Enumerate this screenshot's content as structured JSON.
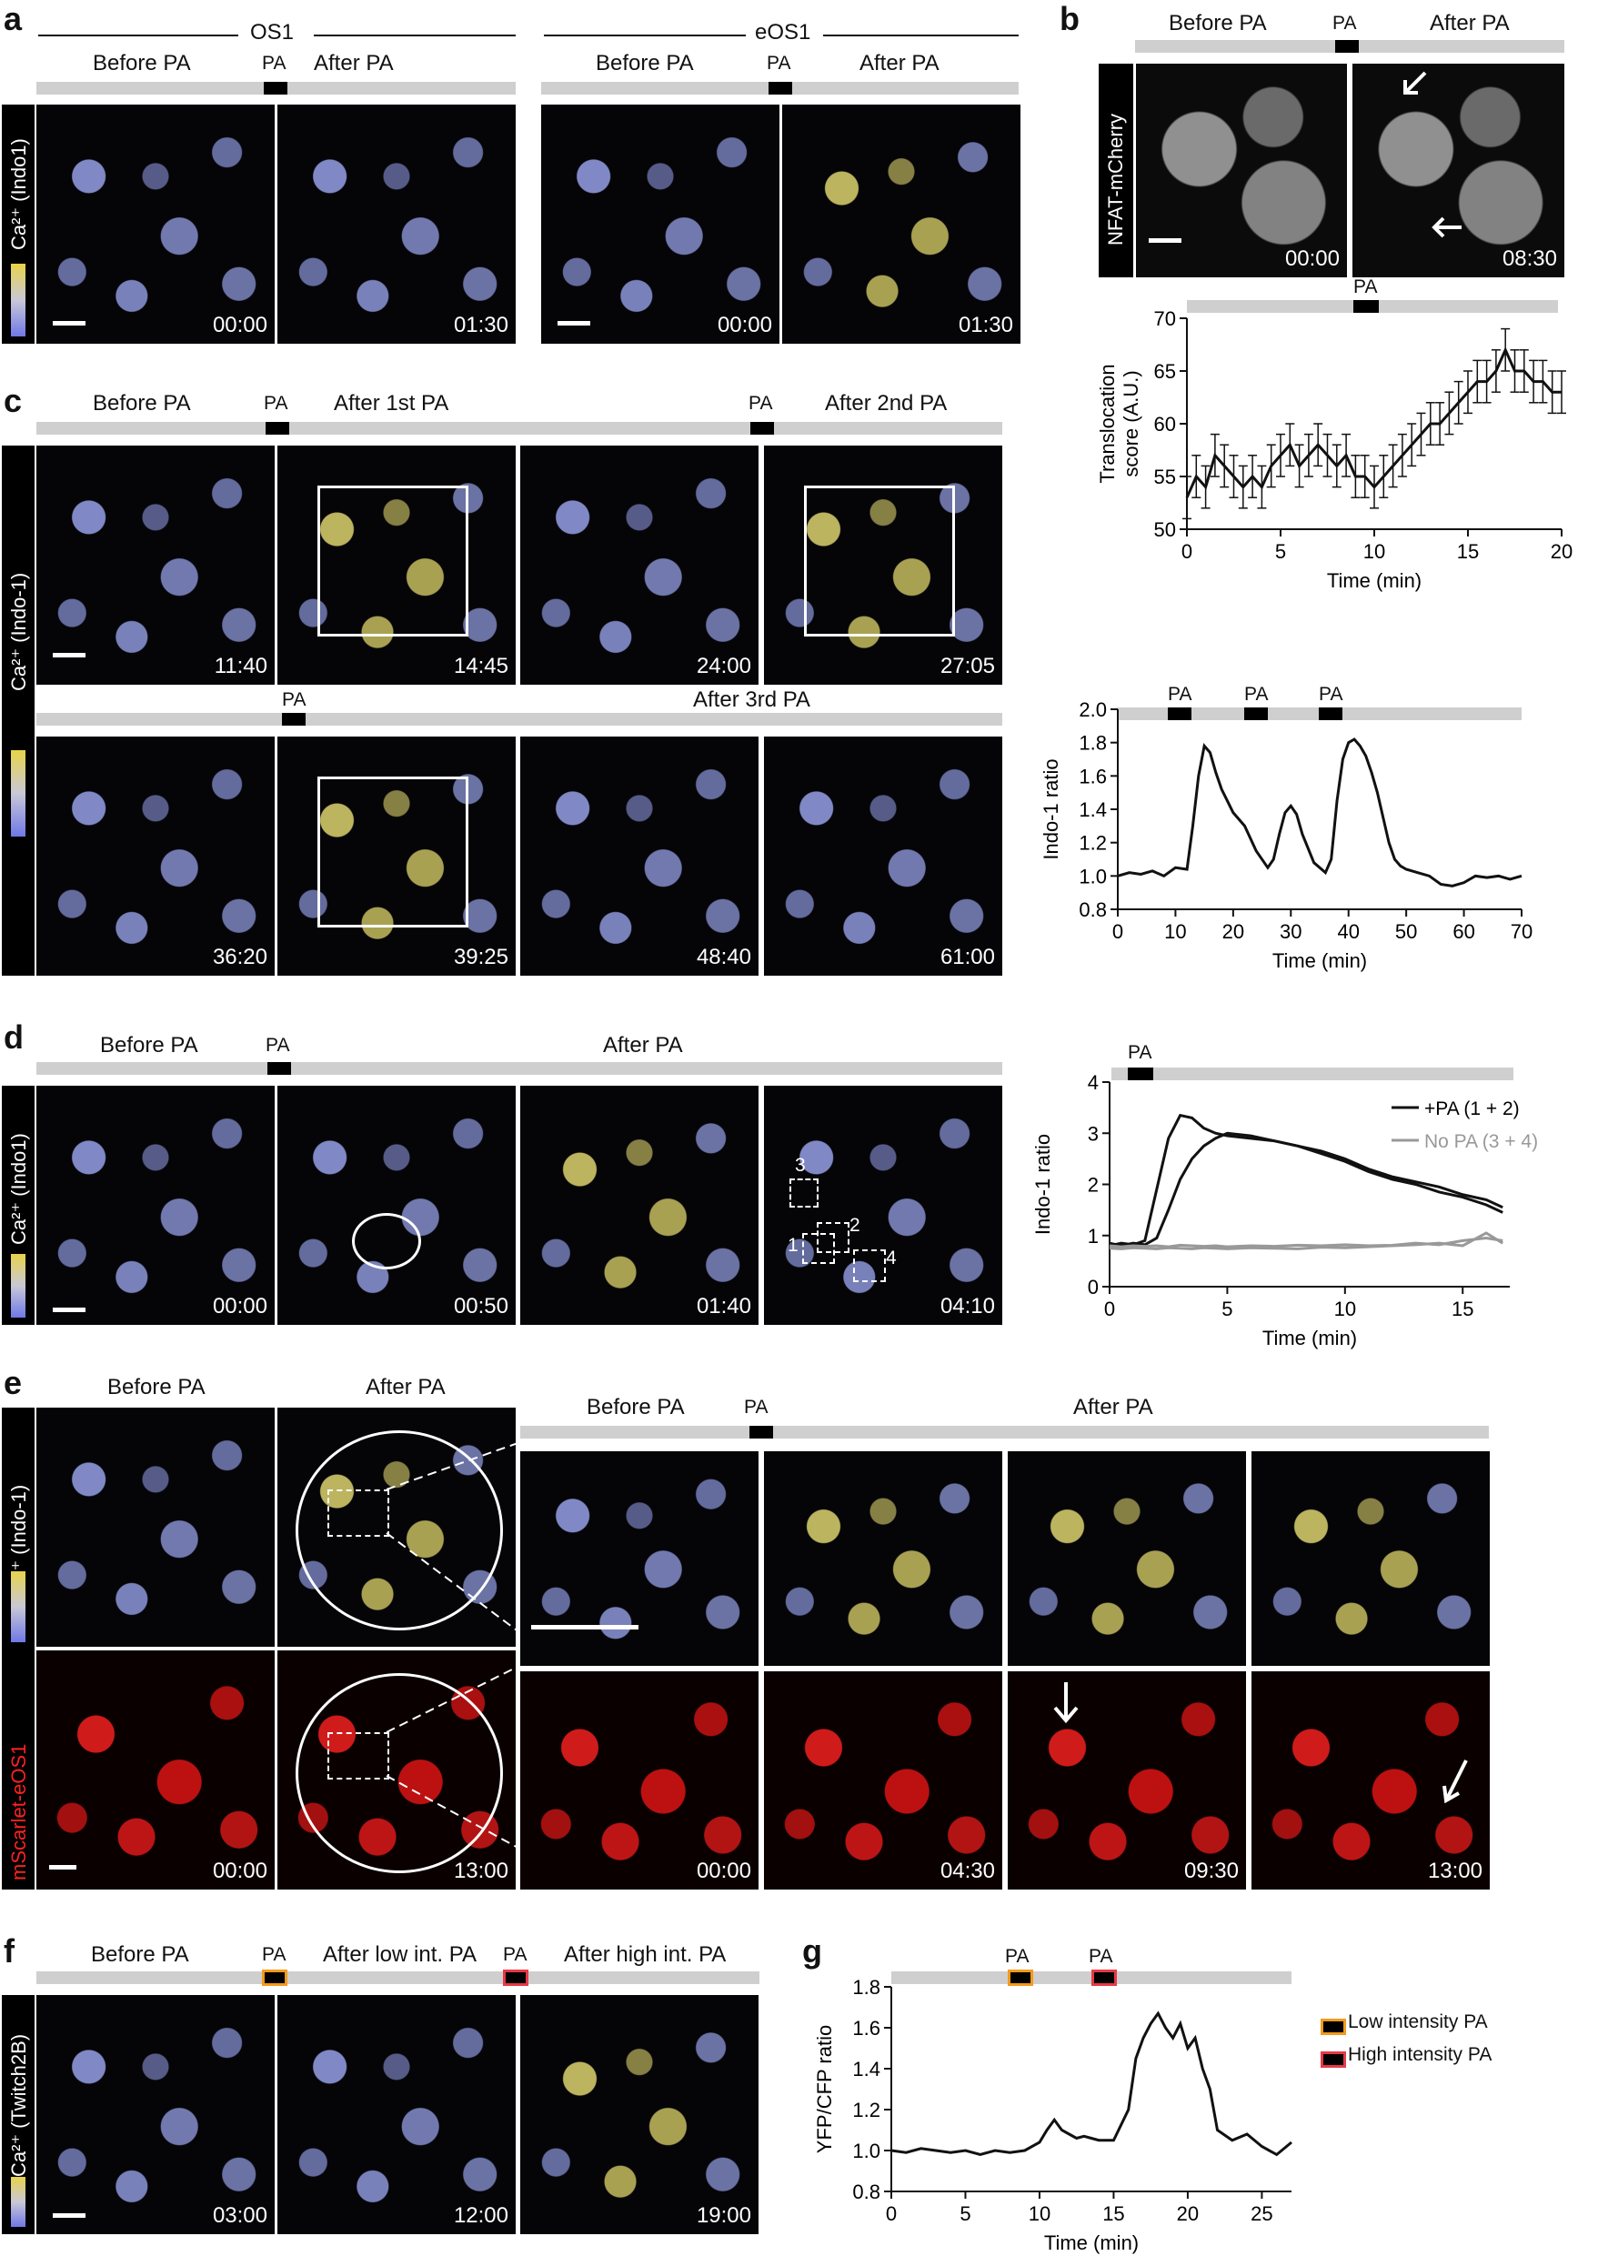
{
  "panel_letters": {
    "a": "a",
    "b": "b",
    "c": "c",
    "d": "d",
    "e": "e",
    "f": "f",
    "g": "g"
  },
  "common": {
    "pa": "PA",
    "before_pa": "Before PA",
    "after_pa": "After PA"
  },
  "a": {
    "os1": "OS1",
    "eos1": "eOS1",
    "sidebar_label": "Ca²⁺ (Indo1)",
    "times": [
      "00:00",
      "01:30",
      "00:00",
      "01:30"
    ]
  },
  "b": {
    "sidebar_label": "NFAT-mCherry",
    "times": [
      "00:00",
      "08:30"
    ]
  },
  "c": {
    "after_1st": "After 1st PA",
    "after_2nd": "After 2nd PA",
    "after_3rd": "After 3rd PA",
    "sidebar_label": "Ca²⁺ (Indo-1)",
    "times_row1": [
      "11:40",
      "14:45",
      "24:00",
      "27:05"
    ],
    "times_row2": [
      "36:20",
      "39:25",
      "48:40",
      "61:00"
    ]
  },
  "d": {
    "sidebar_label": "Ca²⁺ (Indo1)",
    "times": [
      "00:00",
      "00:50",
      "01:40",
      "04:10"
    ],
    "roi_labels": [
      "1",
      "2",
      "3",
      "4"
    ]
  },
  "e": {
    "sidebar_top": "Ca²⁺ (Indo-1)",
    "sidebar_bottom": "mScarlet-eOS1",
    "times_bottom": [
      "00:00",
      "13:00"
    ],
    "zoom_times": [
      "00:00",
      "04:30",
      "09:30",
      "13:00"
    ]
  },
  "f": {
    "after_low": "After low int. PA",
    "after_high": "After high int. PA",
    "sidebar_label": "Ca²⁺ (Twitch2B)",
    "times": [
      "03:00",
      "12:00",
      "19:00"
    ]
  },
  "colors": {
    "low_pa": "#f39a1c",
    "high_pa": "#e63946",
    "no_pa": "#999999"
  },
  "chart_data": [
    {
      "id": "b-translocation",
      "type": "line",
      "xlabel": "Time (min)",
      "ylabel": "Translocation score (A.U.)",
      "xlim": [
        0,
        20
      ],
      "ylim": [
        50,
        70
      ],
      "xticks": [
        0,
        5,
        10,
        15,
        20
      ],
      "yticks": [
        50,
        55,
        60,
        65,
        70
      ],
      "pa_window": [
        9.5,
        10.5
      ],
      "x": [
        0,
        0.5,
        1,
        1.5,
        2,
        2.5,
        3,
        3.5,
        4,
        4.5,
        5,
        5.5,
        6,
        6.5,
        7,
        7.5,
        8,
        8.5,
        9,
        9.5,
        10,
        10.5,
        11,
        11.5,
        12,
        12.5,
        13,
        13.5,
        14,
        14.5,
        15,
        15.5,
        16,
        16.5,
        17,
        17.5,
        18,
        18.5,
        19,
        19.5,
        20
      ],
      "series": [
        {
          "values": [
            53,
            55,
            54,
            57,
            56,
            55,
            54,
            55,
            54,
            56,
            57,
            58,
            56,
            57,
            58,
            57,
            56,
            57,
            55,
            55,
            54,
            55,
            56,
            57,
            58,
            59,
            60,
            60,
            61,
            62,
            63,
            64,
            64,
            65,
            67,
            65,
            65,
            64,
            64,
            63,
            63
          ]
        }
      ]
    },
    {
      "id": "c-indo1",
      "type": "line",
      "xlabel": "Time (min)",
      "ylabel": "Indo-1 ratio",
      "xlim": [
        0,
        70
      ],
      "ylim": [
        0.8,
        2.0
      ],
      "xticks": [
        0,
        10,
        20,
        30,
        40,
        50,
        60,
        70
      ],
      "yticks": [
        0.8,
        1.0,
        1.2,
        1.4,
        1.6,
        1.8,
        2.0
      ],
      "pa_windows": [
        [
          9.5,
          14
        ],
        [
          23,
          27.5
        ],
        [
          36,
          40.5
        ]
      ],
      "x": [
        0,
        2,
        4,
        6,
        8,
        10,
        12,
        13,
        14,
        15,
        16,
        17,
        18,
        19,
        20,
        22,
        24,
        26,
        27,
        28,
        29,
        30,
        31,
        32,
        34,
        36,
        37,
        38,
        39,
        40,
        41,
        42,
        43,
        44,
        45,
        46,
        47,
        48,
        49,
        50,
        52,
        54,
        56,
        58,
        60,
        62,
        64,
        66,
        68,
        70
      ],
      "series": [
        {
          "values": [
            1.0,
            1.02,
            1.01,
            1.03,
            1.0,
            1.05,
            1.04,
            1.3,
            1.6,
            1.78,
            1.74,
            1.62,
            1.52,
            1.45,
            1.38,
            1.3,
            1.15,
            1.05,
            1.1,
            1.25,
            1.38,
            1.42,
            1.37,
            1.25,
            1.08,
            1.02,
            1.1,
            1.45,
            1.7,
            1.8,
            1.82,
            1.78,
            1.72,
            1.62,
            1.5,
            1.35,
            1.2,
            1.1,
            1.06,
            1.04,
            1.02,
            1.0,
            0.95,
            0.94,
            0.96,
            1.0,
            0.99,
            1.0,
            0.98,
            1.0
          ]
        }
      ]
    },
    {
      "id": "d-indo1",
      "type": "line",
      "xlabel": "Time (min)",
      "ylabel": "Indo-1 ratio",
      "xlim": [
        0,
        17
      ],
      "ylim": [
        0,
        4
      ],
      "xticks": [
        0,
        5,
        10,
        15
      ],
      "yticks": [
        0,
        1,
        2,
        3,
        4
      ],
      "pa_window": [
        0.8,
        1.7
      ],
      "legend_placement": "top-right",
      "legend": [
        "+PA (1 + 2)",
        "No PA (3 + 4)"
      ],
      "x": [
        0,
        0.5,
        1,
        1.5,
        2,
        2.5,
        3,
        3.5,
        4,
        4.5,
        5,
        6,
        7,
        8,
        9,
        10,
        11,
        12,
        13,
        14,
        15,
        16,
        16.7
      ],
      "series": [
        {
          "name": "+PA (1 + 2)",
          "values": [
            0.8,
            0.85,
            0.82,
            0.9,
            1.9,
            2.9,
            3.35,
            3.3,
            3.1,
            3.0,
            2.95,
            2.9,
            2.85,
            2.75,
            2.65,
            2.5,
            2.3,
            2.15,
            2.05,
            1.95,
            1.8,
            1.7,
            1.55
          ]
        },
        {
          "name": "+PA (1 + 2)",
          "values": [
            0.85,
            0.8,
            0.85,
            0.82,
            0.95,
            1.5,
            2.1,
            2.5,
            2.75,
            2.9,
            3.0,
            2.95,
            2.85,
            2.75,
            2.6,
            2.45,
            2.25,
            2.1,
            2.0,
            1.85,
            1.75,
            1.6,
            1.45
          ]
        },
        {
          "name": "No PA (3 + 4)",
          "values": [
            0.8,
            0.78,
            0.8,
            0.79,
            0.8,
            0.78,
            0.81,
            0.8,
            0.79,
            0.8,
            0.78,
            0.8,
            0.79,
            0.81,
            0.8,
            0.82,
            0.8,
            0.81,
            0.85,
            0.82,
            0.9,
            0.95,
            0.9
          ]
        },
        {
          "name": "No PA (3 + 4)",
          "values": [
            0.75,
            0.74,
            0.76,
            0.75,
            0.74,
            0.76,
            0.75,
            0.74,
            0.76,
            0.75,
            0.74,
            0.76,
            0.75,
            0.74,
            0.77,
            0.76,
            0.78,
            0.8,
            0.82,
            0.85,
            0.8,
            1.05,
            0.85
          ]
        }
      ]
    },
    {
      "id": "g-yfpcfp",
      "type": "line",
      "xlabel": "Time (min)",
      "ylabel": "YFP/CFP ratio",
      "xlim": [
        0,
        27
      ],
      "ylim": [
        0.8,
        1.8
      ],
      "xticks": [
        0,
        5,
        10,
        15,
        20,
        25
      ],
      "yticks": [
        0.8,
        1.0,
        1.2,
        1.4,
        1.6,
        1.8
      ],
      "pa_windows": [
        {
          "range": [
            8,
            9.5
          ],
          "label": "Low intensity PA"
        },
        {
          "range": [
            13.5,
            15
          ],
          "label": "High intensity PA"
        }
      ],
      "legend_placement": "right",
      "legend": [
        "Low intensity PA",
        "High intensity PA"
      ],
      "x": [
        0,
        1,
        2,
        3,
        4,
        5,
        6,
        7,
        8,
        9,
        10,
        10.5,
        11,
        11.5,
        12,
        12.5,
        13,
        13.5,
        14,
        15,
        16,
        16.5,
        17,
        17.5,
        18,
        18.5,
        19,
        19.5,
        20,
        20.5,
        21,
        21.5,
        22,
        23,
        24,
        25,
        26,
        27
      ],
      "series": [
        {
          "values": [
            1.0,
            0.99,
            1.01,
            1.0,
            0.99,
            1.0,
            0.98,
            1.0,
            0.99,
            1.0,
            1.04,
            1.1,
            1.15,
            1.1,
            1.08,
            1.06,
            1.07,
            1.06,
            1.05,
            1.05,
            1.2,
            1.45,
            1.55,
            1.62,
            1.67,
            1.6,
            1.55,
            1.62,
            1.5,
            1.55,
            1.4,
            1.3,
            1.1,
            1.05,
            1.08,
            1.02,
            0.98,
            1.04
          ]
        }
      ]
    }
  ]
}
